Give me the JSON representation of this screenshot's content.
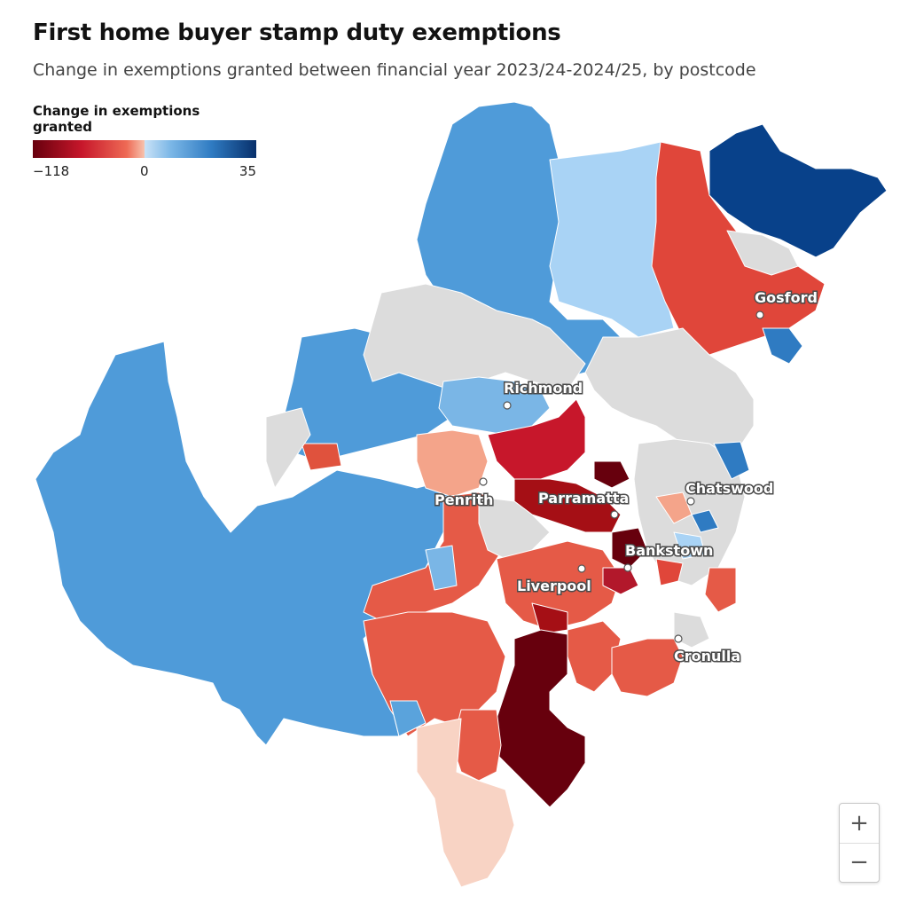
{
  "title": "First home buyer stamp duty exemptions",
  "subtitle": "Change in exemptions granted between financial year 2023/24-2024/25, by postcode",
  "legend": {
    "title": "Change in exemptions granted",
    "min_label": "−118",
    "mid_label": "0",
    "max_label": "35",
    "min": -118,
    "max": 35,
    "colors": [
      "#67000d",
      "#b2182b",
      "#e0523d",
      "#f7b39a",
      "#e8e8e8",
      "#a9d3f5",
      "#5aa3dc",
      "#2166ac",
      "#053061"
    ]
  },
  "map": {
    "no_data_color": "#dcdcdc",
    "places": [
      "Richmond",
      "Penrith",
      "Parramatta",
      "Chatswood",
      "Bankstown",
      "Liverpool",
      "Cronulla",
      "Gosford"
    ]
  },
  "zoom": {
    "in_label": "+",
    "out_label": "−"
  }
}
